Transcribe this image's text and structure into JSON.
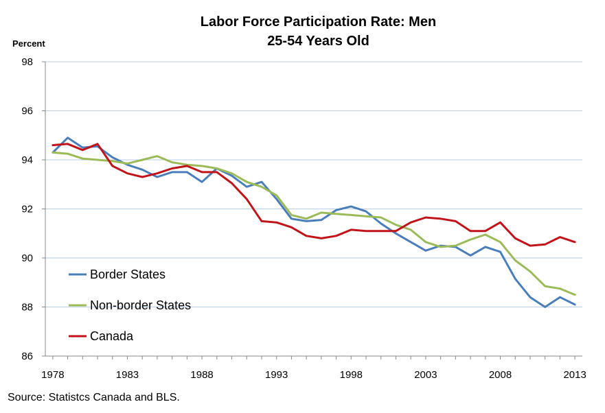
{
  "chart_data": {
    "type": "line",
    "title_line1": "Labor Force Participation Rate: Men",
    "title_line2": "25-54 Years Old",
    "ylabel": "Percent",
    "xlabel": "",
    "source": "Source: Statistcs Canada and BLS.",
    "ylim": [
      86,
      98
    ],
    "yticks": [
      86,
      88,
      90,
      92,
      94,
      96,
      98
    ],
    "xlim": [
      1977.5,
      2013.5
    ],
    "xticks": [
      1978,
      1983,
      1988,
      1993,
      1998,
      2003,
      2008,
      2013
    ],
    "grid": true,
    "legend_position": "bottom-left",
    "x": [
      1978,
      1979,
      1980,
      1981,
      1982,
      1983,
      1984,
      1985,
      1986,
      1987,
      1988,
      1989,
      1990,
      1991,
      1992,
      1993,
      1994,
      1995,
      1996,
      1997,
      1998,
      1999,
      2000,
      2001,
      2002,
      2003,
      2004,
      2005,
      2006,
      2007,
      2008,
      2009,
      2010,
      2011,
      2012,
      2013
    ],
    "series": [
      {
        "name": "Border States",
        "color": "#4a7ebb",
        "values": [
          94.3,
          94.9,
          94.5,
          94.55,
          94.1,
          93.8,
          93.6,
          93.3,
          93.5,
          93.5,
          93.1,
          93.65,
          93.35,
          92.9,
          93.1,
          92.4,
          91.6,
          91.5,
          91.55,
          91.95,
          92.1,
          91.9,
          91.4,
          91.0,
          90.65,
          90.3,
          90.5,
          90.45,
          90.1,
          90.45,
          90.25,
          89.15,
          88.4,
          88.0,
          88.4,
          88.1
        ]
      },
      {
        "name": "Non-border States",
        "color": "#9bbb59",
        "values": [
          94.3,
          94.25,
          94.05,
          94.0,
          93.95,
          93.85,
          94.0,
          94.15,
          93.9,
          93.8,
          93.75,
          93.65,
          93.45,
          93.1,
          92.9,
          92.55,
          91.75,
          91.6,
          91.85,
          91.8,
          91.75,
          91.7,
          91.65,
          91.35,
          91.15,
          90.65,
          90.45,
          90.5,
          90.75,
          90.95,
          90.65,
          89.9,
          89.45,
          88.85,
          88.75,
          88.5
        ]
      },
      {
        "name": "Canada",
        "color": "#c0141a",
        "values": [
          94.6,
          94.65,
          94.4,
          94.65,
          93.75,
          93.45,
          93.3,
          93.45,
          93.65,
          93.75,
          93.5,
          93.5,
          93.05,
          92.4,
          91.5,
          91.45,
          91.25,
          90.9,
          90.8,
          90.9,
          91.15,
          91.1,
          91.1,
          91.1,
          91.45,
          91.65,
          91.6,
          91.5,
          91.1,
          91.1,
          91.45,
          90.8,
          90.5,
          90.55,
          90.85,
          90.65
        ]
      }
    ]
  },
  "colors": {
    "axis": "#888888",
    "grid": "#b9cde5"
  }
}
